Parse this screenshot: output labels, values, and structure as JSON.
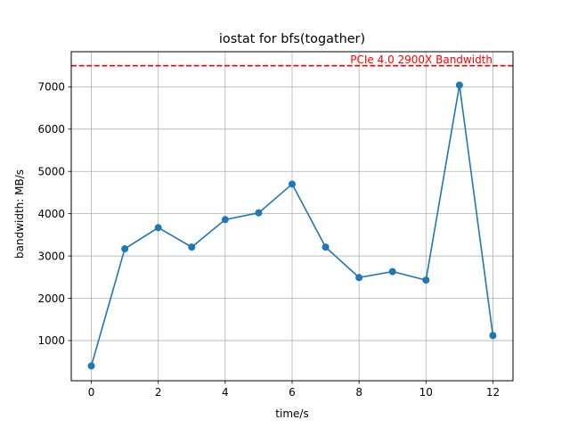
{
  "chart_data": {
    "type": "line",
    "title": "iostat for bfs(togather)",
    "xlabel": "time/s",
    "ylabel": "bandwidth: MB/s",
    "x": [
      0,
      1,
      2,
      3,
      4,
      5,
      6,
      7,
      8,
      9,
      10,
      11,
      12
    ],
    "series": [
      {
        "values": [
          400,
          3170,
          3670,
          3210,
          3860,
          4020,
          4700,
          3210,
          2490,
          2630,
          2430,
          7040,
          1120
        ],
        "color": "#1f77b4",
        "marker": "circle"
      }
    ],
    "xlim": [
      -0.6,
      12.6
    ],
    "ylim": [
      50,
      7830
    ],
    "xticks": [
      0,
      2,
      4,
      6,
      8,
      10,
      12
    ],
    "yticks": [
      1000,
      2000,
      3000,
      4000,
      5000,
      6000,
      7000
    ],
    "grid": true,
    "reference_line": {
      "y": 7500,
      "label": "PCIe 4.0 2900X Bandwidth",
      "color": "#ff0000",
      "style": "dashed"
    }
  }
}
